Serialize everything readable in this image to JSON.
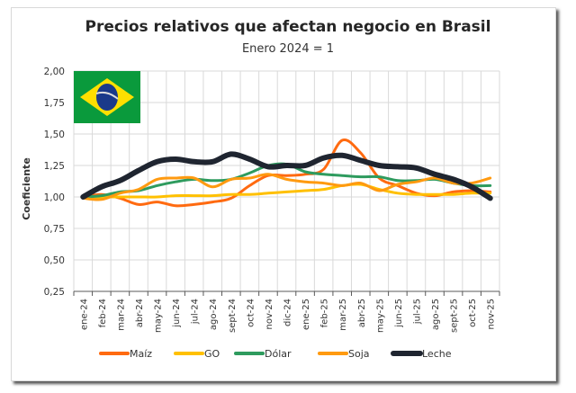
{
  "chart_data": {
    "type": "line",
    "title": "Precios relativos que afectan negocio en Brasil",
    "subtitle": "Enero 2024 = 1",
    "ylabel": "Coeficiente",
    "xlabel": "",
    "ylim": [
      0.25,
      2.0
    ],
    "yticks": [
      "0,25",
      "0,50",
      "0,75",
      "1,00",
      "1,25",
      "1,50",
      "1,75",
      "2,00"
    ],
    "grid": true,
    "legend": "bottom",
    "categories": [
      "ene-24",
      "feb-24",
      "mar-24",
      "abr-24",
      "may-24",
      "jun-24",
      "jul-24",
      "ago-24",
      "sept-24",
      "oct-24",
      "nov-24",
      "dic-24",
      "ene-25",
      "feb-25",
      "mar-25",
      "abr-25",
      "may-25",
      "jun-25",
      "jul-25",
      "ago-25",
      "sept-25",
      "oct-25",
      "nov-25"
    ],
    "series": [
      {
        "name": "Maíz",
        "color": "#FF6A10",
        "values": [
          1.0,
          1.02,
          0.99,
          0.94,
          0.96,
          0.93,
          0.94,
          0.96,
          0.99,
          1.09,
          1.17,
          1.17,
          1.18,
          1.22,
          1.45,
          1.35,
          1.15,
          1.09,
          1.03,
          1.01,
          1.04,
          1.05,
          1.04
        ]
      },
      {
        "name": "GO",
        "color": "#FFC000",
        "values": [
          1.0,
          1.0,
          1.0,
          1.0,
          1.0,
          1.01,
          1.01,
          1.01,
          1.02,
          1.02,
          1.03,
          1.04,
          1.05,
          1.06,
          1.09,
          1.1,
          1.06,
          1.03,
          1.02,
          1.02,
          1.02,
          1.03,
          1.03
        ]
      },
      {
        "name": "Dólar",
        "color": "#2E9B5E",
        "values": [
          1.0,
          1.01,
          1.04,
          1.05,
          1.09,
          1.12,
          1.14,
          1.13,
          1.14,
          1.19,
          1.25,
          1.26,
          1.2,
          1.18,
          1.17,
          1.16,
          1.16,
          1.13,
          1.13,
          1.14,
          1.11,
          1.09,
          1.09
        ]
      },
      {
        "name": "Soja",
        "color": "#FF9A10",
        "values": [
          0.99,
          0.98,
          1.03,
          1.06,
          1.14,
          1.15,
          1.15,
          1.08,
          1.14,
          1.15,
          1.18,
          1.14,
          1.12,
          1.11,
          1.09,
          1.11,
          1.05,
          1.1,
          1.12,
          1.15,
          1.11,
          1.11,
          1.15
        ]
      },
      {
        "name": "Leche",
        "color": "#1F2530",
        "values": [
          1.0,
          1.08,
          1.13,
          1.21,
          1.28,
          1.3,
          1.28,
          1.28,
          1.34,
          1.3,
          1.24,
          1.25,
          1.25,
          1.31,
          1.33,
          1.29,
          1.25,
          1.24,
          1.23,
          1.18,
          1.14,
          1.08,
          0.99
        ]
      }
    ]
  },
  "flag": {
    "name": "brazil-flag",
    "colors": [
      "#009B3A",
      "#FEDF00",
      "#002776"
    ]
  }
}
